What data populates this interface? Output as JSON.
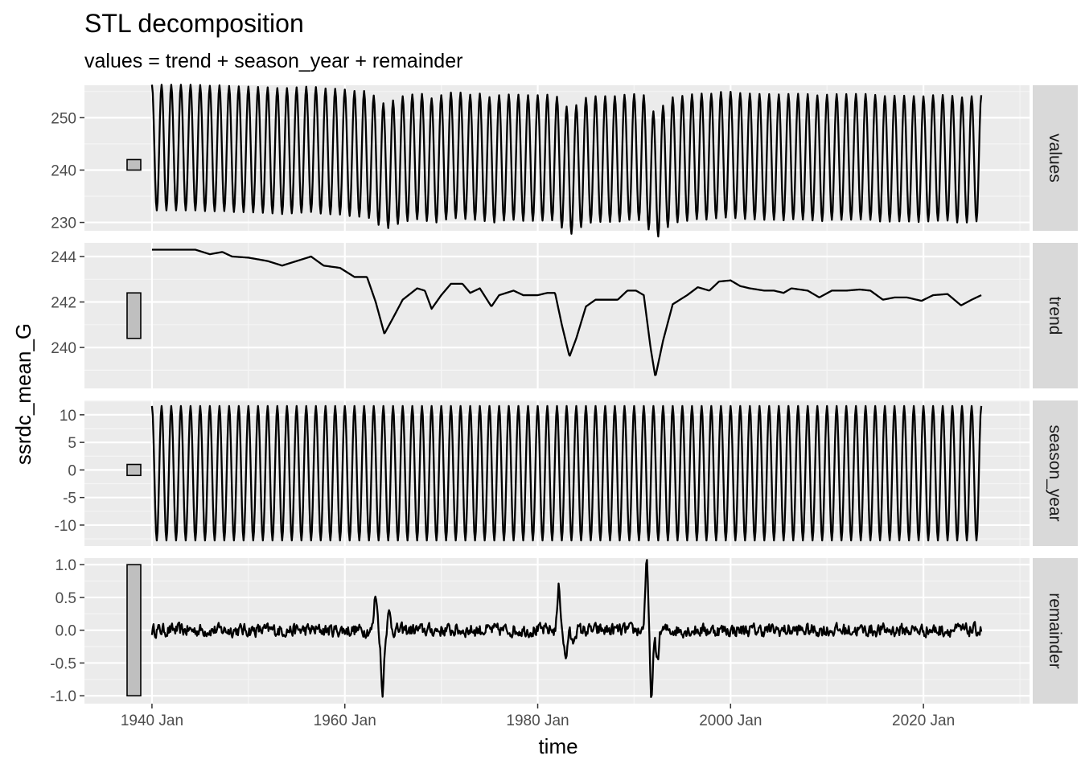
{
  "chart_data": {
    "type": "line",
    "title": "STL decomposition",
    "subtitle": "values = trend + season_year + remainder",
    "xlabel": "time",
    "ylabel": "ssrdc_mean_G",
    "x_start": "1940 Jan",
    "x_end": "2025 Dec",
    "x_tick_labels": [
      "1940 Jan",
      "1960 Jan",
      "1980 Jan",
      "2000 Jan",
      "2020 Jan"
    ],
    "x_ticks_year": [
      1940,
      1960,
      1980,
      2000,
      2020
    ],
    "x_range_year": [
      1933,
      2031
    ],
    "grid": true,
    "line_color": "#000000",
    "panel_background": "#ebebeb",
    "strip_background": "#d9d9d9",
    "panels": [
      {
        "name": "values",
        "ylim": [
          228.4,
          256.2
        ],
        "y_ticks": [
          230,
          240,
          250
        ],
        "y_tick_labels": [
          "230",
          "240",
          "250"
        ],
        "scale_bar": [
          240,
          242
        ],
        "seasonal_amplitude": 12,
        "knots": [
          [
            1940,
            243.5
          ],
          [
            2026,
            243.5
          ]
        ],
        "events": []
      },
      {
        "name": "trend",
        "ylim": [
          238.2,
          244.6
        ],
        "y_ticks": [
          240,
          242,
          244
        ],
        "y_tick_labels": [
          "240",
          "242",
          "244"
        ],
        "scale_bar": [
          240.4,
          242.4
        ],
        "knots": [
          [
            1940,
            244.3
          ],
          [
            1941.5,
            244.3
          ],
          [
            1943,
            244.3
          ],
          [
            1944.5,
            244.3
          ],
          [
            1946,
            244.1
          ],
          [
            1947.3,
            244.2
          ],
          [
            1948.3,
            244.0
          ],
          [
            1950,
            243.95
          ],
          [
            1952,
            243.8
          ],
          [
            1953.5,
            243.6
          ],
          [
            1955,
            243.8
          ],
          [
            1956.5,
            244.0
          ],
          [
            1957.8,
            243.6
          ],
          [
            1959.5,
            243.5
          ],
          [
            1961,
            243.1
          ],
          [
            1962.3,
            243.1
          ],
          [
            1963.2,
            242.0
          ],
          [
            1964.1,
            240.6
          ],
          [
            1965,
            241.3
          ],
          [
            1966,
            242.1
          ],
          [
            1967.5,
            242.6
          ],
          [
            1968.3,
            242.5
          ],
          [
            1969,
            241.7
          ],
          [
            1970,
            242.3
          ],
          [
            1971,
            242.8
          ],
          [
            1972.2,
            242.8
          ],
          [
            1973,
            242.4
          ],
          [
            1974,
            242.6
          ],
          [
            1975.2,
            241.8
          ],
          [
            1976,
            242.3
          ],
          [
            1977.5,
            242.5
          ],
          [
            1978.5,
            242.3
          ],
          [
            1980,
            242.3
          ],
          [
            1981,
            242.4
          ],
          [
            1981.8,
            242.4
          ],
          [
            1982.5,
            241.0
          ],
          [
            1983.3,
            239.6
          ],
          [
            1984,
            240.4
          ],
          [
            1985,
            241.8
          ],
          [
            1986,
            242.1
          ],
          [
            1987.5,
            242.1
          ],
          [
            1988.3,
            242.1
          ],
          [
            1989.3,
            242.5
          ],
          [
            1990.2,
            242.5
          ],
          [
            1991,
            242.3
          ],
          [
            1991.7,
            240.0
          ],
          [
            1992.2,
            238.7
          ],
          [
            1993,
            240.3
          ],
          [
            1994,
            241.9
          ],
          [
            1995.5,
            242.3
          ],
          [
            1996.6,
            242.65
          ],
          [
            1997.8,
            242.5
          ],
          [
            1998.8,
            242.9
          ],
          [
            2000,
            242.95
          ],
          [
            2001,
            242.7
          ],
          [
            2002,
            242.6
          ],
          [
            2003.5,
            242.5
          ],
          [
            2004.5,
            242.5
          ],
          [
            2005.5,
            242.4
          ],
          [
            2006.3,
            242.6
          ],
          [
            2008,
            242.5
          ],
          [
            2009.2,
            242.2
          ],
          [
            2010.5,
            242.5
          ],
          [
            2012,
            242.5
          ],
          [
            2013.4,
            242.55
          ],
          [
            2014.5,
            242.5
          ],
          [
            2015.8,
            242.1
          ],
          [
            2017,
            242.2
          ],
          [
            2018.3,
            242.2
          ],
          [
            2019.8,
            242.05
          ],
          [
            2021,
            242.3
          ],
          [
            2022.5,
            242.35
          ],
          [
            2023.9,
            241.85
          ],
          [
            2025,
            242.1
          ],
          [
            2026,
            242.3
          ]
        ],
        "events": []
      },
      {
        "name": "season_year",
        "ylim": [
          -13.8,
          12.6
        ],
        "y_ticks": [
          -10,
          -5,
          0,
          5,
          10
        ],
        "y_tick_labels": [
          "-10",
          "-5",
          "0",
          "5",
          "10"
        ],
        "scale_bar": [
          -1,
          1
        ],
        "seasonal_amplitude": 12.2,
        "knots": [
          [
            1940,
            -0.6
          ],
          [
            2026,
            -0.6
          ]
        ],
        "events": []
      },
      {
        "name": "remainder",
        "ylim": [
          -1.12,
          1.1
        ],
        "y_ticks": [
          -1.0,
          -0.5,
          0.0,
          0.5,
          1.0
        ],
        "y_tick_labels": [
          "-1.0",
          "-0.5",
          "0.0",
          "0.5",
          "1.0"
        ],
        "scale_bar": [
          -1.0,
          1.0
        ],
        "noise_amplitude": 0.09,
        "knots": [
          [
            1940,
            0.0
          ],
          [
            2026,
            0.0
          ]
        ],
        "events": [
          [
            1963.2,
            0.55
          ],
          [
            1963.9,
            -0.95
          ],
          [
            1964.6,
            0.25
          ],
          [
            1982.2,
            0.65
          ],
          [
            1982.9,
            -0.45
          ],
          [
            1983.6,
            -0.2
          ],
          [
            1991.3,
            1.0
          ],
          [
            1991.8,
            -1.0
          ],
          [
            1992.4,
            -0.45
          ]
        ]
      }
    ]
  }
}
